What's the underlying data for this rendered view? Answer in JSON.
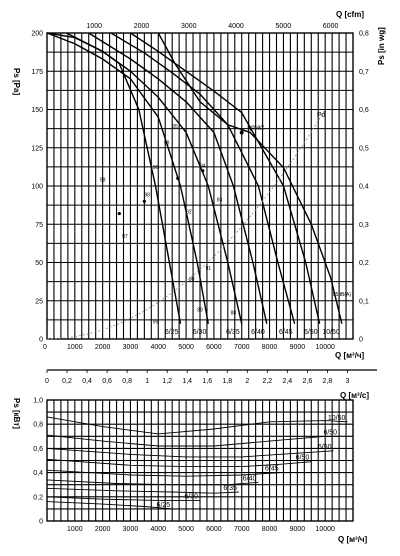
{
  "chart_data": [
    {
      "type": "line",
      "name": "pressure-flow",
      "units": {
        "ps_left": "Ps [Pa]",
        "ps_right": "Ps [in wg]",
        "q_top": "Q [cfm]",
        "q_bottom": "Q [м³/ч]",
        "q_mid": "Q [м³/с]"
      },
      "x_m3h_ticks": [
        0,
        1000,
        2000,
        3000,
        4000,
        5000,
        6000,
        7000,
        8000,
        9000,
        10000,
        11000
      ],
      "x_m3h_labels": [
        "0",
        "1000",
        "2000",
        "3000",
        "4000",
        "5000",
        "6000",
        "7000",
        "8000",
        "9000",
        "10000",
        "11000"
      ],
      "x_m3h_range": [
        0,
        11000
      ],
      "x_cfm_ticks": [
        1000,
        2000,
        3000,
        4000,
        5000,
        6000
      ],
      "x_cfm_labels": [
        "1000",
        "2000",
        "3000",
        "4000",
        "5000",
        "6000"
      ],
      "x_m3s_ticks": [
        0,
        0.2,
        0.4,
        0.6,
        0.8,
        1,
        1.2,
        1.4,
        1.6,
        1.8,
        2,
        2.2,
        2.4,
        2.6,
        2.8,
        3
      ],
      "x_m3s_labels": [
        "0",
        "0,2",
        "0,4",
        "0,6",
        "0,8",
        "1",
        "1,2",
        "1,4",
        "1,6",
        "1,8",
        "2",
        "2,2",
        "2,4",
        "2,6",
        "2,8",
        "3"
      ],
      "y_pa_ticks": [
        0,
        25,
        50,
        75,
        100,
        125,
        150,
        175,
        200
      ],
      "y_pa_labels": [
        "0",
        "25",
        "50",
        "75",
        "100",
        "125",
        "150",
        "175",
        "200"
      ],
      "y_pa_range": [
        0,
        200
      ],
      "y_inwg_ticks": [
        0,
        0.1,
        0.2,
        0.3,
        0.4,
        0.5,
        0.6,
        0.7,
        0.8
      ],
      "y_inwg_labels": [
        "0",
        "0,1",
        "0,2",
        "0,3",
        "0,4",
        "0,5",
        "0,6",
        "0,7",
        "0,8"
      ],
      "series": [
        {
          "name": "6/25",
          "points": [
            [
              0,
              200
            ],
            [
              1000,
              197
            ],
            [
              2000,
              188
            ],
            [
              2600,
              180
            ],
            [
              3300,
              150
            ],
            [
              3900,
              100
            ],
            [
              4400,
              50
            ],
            [
              4800,
              10
            ]
          ]
        },
        {
          "name": "6/30",
          "points": [
            [
              0,
              200
            ],
            [
              1000,
              193
            ],
            [
              2000,
              183
            ],
            [
              3000,
              170
            ],
            [
              4000,
              145
            ],
            [
              4800,
              100
            ],
            [
              5400,
              50
            ],
            [
              5800,
              10
            ]
          ]
        },
        {
          "name": "6/35",
          "points": [
            [
              700,
              200
            ],
            [
              2000,
              188
            ],
            [
              3000,
              175
            ],
            [
              4000,
              158
            ],
            [
              5000,
              135
            ],
            [
              5800,
              100
            ],
            [
              6500,
              50
            ],
            [
              7000,
              10
            ]
          ]
        },
        {
          "name": "6/40",
          "points": [
            [
              1500,
              200
            ],
            [
              3000,
              183
            ],
            [
              4000,
              170
            ],
            [
              5000,
              155
            ],
            [
              6000,
              135
            ],
            [
              6700,
              100
            ],
            [
              7400,
              50
            ],
            [
              7900,
              10
            ]
          ]
        },
        {
          "name": "6/45",
          "points": [
            [
              2300,
              200
            ],
            [
              3500,
              187
            ],
            [
              4500,
              174
            ],
            [
              5500,
              160
            ],
            [
              6500,
              140
            ],
            [
              7600,
              100
            ],
            [
              8300,
              50
            ],
            [
              8900,
              10
            ]
          ]
        },
        {
          "name": "6/50",
          "points": [
            [
              3000,
              200
            ],
            [
              4000,
              188
            ],
            [
              5000,
              175
            ],
            [
              6000,
              162
            ],
            [
              7000,
              148
            ],
            [
              8500,
              100
            ],
            [
              9300,
              50
            ],
            [
              9800,
              10
            ]
          ]
        },
        {
          "name": "10/50",
          "points": [
            [
              4000,
              200
            ],
            [
              4600,
              180
            ],
            [
              5500,
              155
            ],
            [
              6500,
              140
            ],
            [
              7300,
              135
            ],
            [
              8500,
              112
            ],
            [
              9500,
              75
            ],
            [
              10200,
              40
            ],
            [
              10600,
              10
            ]
          ]
        }
      ],
      "efficiency_labels": [
        "98",
        "98",
        "98",
        "97",
        "96",
        "95",
        "94",
        "93",
        "92",
        "91",
        "90",
        "89",
        "88",
        "99"
      ],
      "annotations": [
        "ηmax",
        "Pd",
        "95dB(A)"
      ]
    },
    {
      "type": "line",
      "name": "power-flow",
      "units": {
        "y": "Ps [кВт]",
        "x": "Q [м³/ч]"
      },
      "x_ticks": [
        1000,
        2000,
        3000,
        4000,
        5000,
        6000,
        7000,
        8000,
        9000,
        10000,
        11000
      ],
      "x_labels": [
        "1000",
        "2000",
        "3000",
        "4000",
        "5000",
        "6000",
        "7000",
        "8000",
        "9000",
        "10000",
        "11000"
      ],
      "x_range": [
        0,
        11000
      ],
      "y_ticks": [
        0,
        0.2,
        0.4,
        0.6,
        0.8,
        1
      ],
      "y_labels": [
        "0",
        "0,2",
        "0,4",
        "0,6",
        "0,8",
        "1,0"
      ],
      "y_range": [
        0,
        1
      ],
      "series": [
        {
          "name": "10/50",
          "points": [
            [
              0,
              0.86
            ],
            [
              2000,
              0.78
            ],
            [
              4000,
              0.72
            ],
            [
              6000,
              0.76
            ],
            [
              8000,
              0.82
            ],
            [
              10000,
              0.83
            ],
            [
              10800,
              0.82
            ]
          ]
        },
        {
          "name": "6/50",
          "points": [
            [
              0,
              0.71
            ],
            [
              2000,
              0.66
            ],
            [
              4000,
              0.62
            ],
            [
              6000,
              0.62
            ],
            [
              8000,
              0.66
            ],
            [
              10000,
              0.7
            ],
            [
              10500,
              0.7
            ]
          ]
        },
        {
          "name": "6/50",
          "points": [
            [
              0,
              0.6
            ],
            [
              3000,
              0.55
            ],
            [
              5000,
              0.53
            ],
            [
              7000,
              0.53
            ],
            [
              9000,
              0.56
            ],
            [
              10300,
              0.58
            ]
          ]
        },
        {
          "name": "6/50",
          "points": [
            [
              0,
              0.51
            ],
            [
              3000,
              0.46
            ],
            [
              5000,
              0.45
            ],
            [
              7000,
              0.45
            ],
            [
              8500,
              0.47
            ],
            [
              9500,
              0.49
            ]
          ]
        },
        {
          "name": "6/45",
          "points": [
            [
              0,
              0.42
            ],
            [
              3000,
              0.38
            ],
            [
              5000,
              0.37
            ],
            [
              7000,
              0.38
            ],
            [
              8400,
              0.4
            ]
          ]
        },
        {
          "name": "6/40",
          "points": [
            [
              0,
              0.34
            ],
            [
              2500,
              0.31
            ],
            [
              4500,
              0.3
            ],
            [
              6500,
              0.3
            ],
            [
              7600,
              0.32
            ]
          ]
        },
        {
          "name": "6/35",
          "points": [
            [
              0,
              0.27
            ],
            [
              2500,
              0.25
            ],
            [
              4500,
              0.24
            ],
            [
              6000,
              0.23
            ],
            [
              6900,
              0.24
            ]
          ]
        },
        {
          "name": "6/30",
          "points": [
            [
              0,
              0.2
            ],
            [
              2000,
              0.18
            ],
            [
              4000,
              0.17
            ],
            [
              5500,
              0.17
            ]
          ]
        },
        {
          "name": "6/25",
          "points": [
            [
              0,
              0.16
            ],
            [
              2000,
              0.14
            ],
            [
              3500,
              0.12
            ],
            [
              4500,
              0.1
            ]
          ]
        }
      ]
    }
  ]
}
